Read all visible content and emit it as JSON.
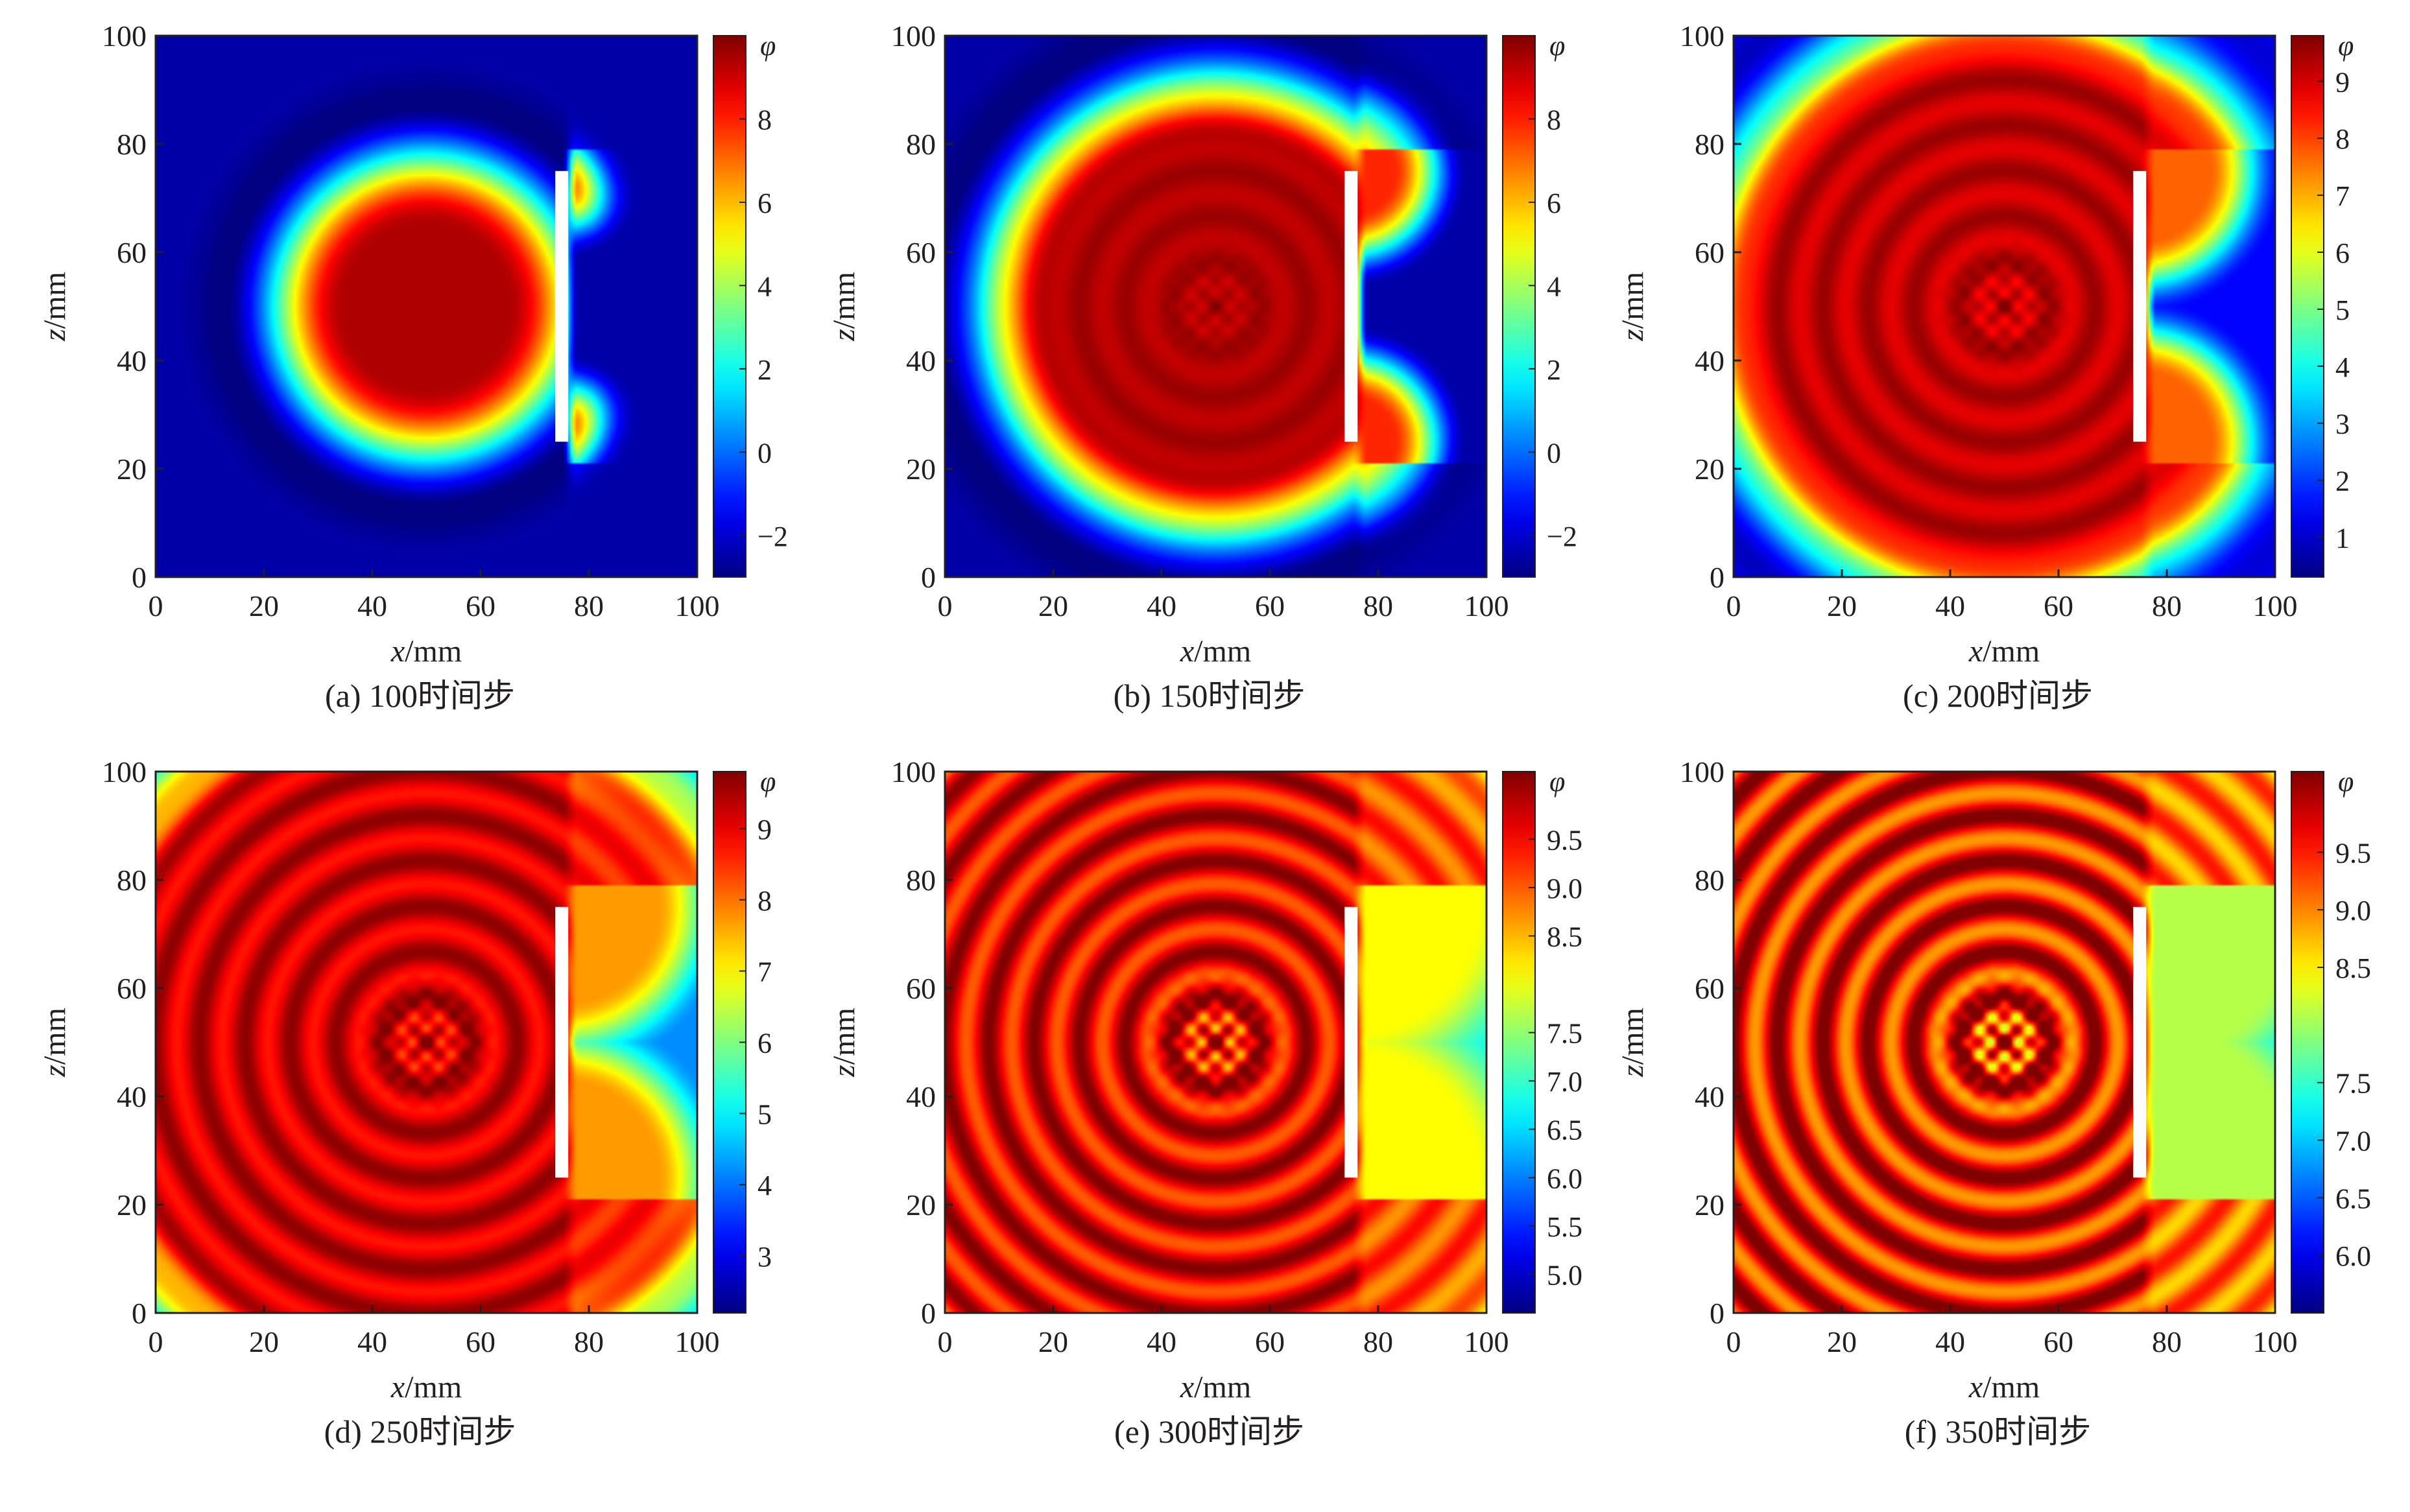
{
  "figure": {
    "panels": [
      {
        "caption": "(a) 100时间步",
        "colorbar": {
          "symbol": "φ",
          "ticks": [
            "8",
            "6",
            "4",
            "2",
            "0",
            "−2"
          ],
          "min": -3,
          "max": 10
        },
        "field": {
          "front_radius": 37,
          "inner_radius": 19,
          "shadow_bg": -2.5,
          "noise": 0,
          "hot_core": 0
        }
      },
      {
        "caption": "(b) 150时间步",
        "colorbar": {
          "symbol": "φ",
          "ticks": [
            "8",
            "6",
            "4",
            "2",
            "0",
            "−2"
          ],
          "min": -3,
          "max": 10
        },
        "field": {
          "front_radius": 52,
          "inner_radius": 32,
          "shadow_bg": -2.5,
          "noise": 0.25,
          "hot_core": 0.4
        }
      },
      {
        "caption": "(c) 200时间步",
        "colorbar": {
          "symbol": "φ",
          "ticks": [
            "9",
            "8",
            "7",
            "6",
            "5",
            "4",
            "3",
            "2",
            "1"
          ],
          "min": 0.3,
          "max": 9.8
        },
        "field": {
          "front_radius": 66,
          "inner_radius": 42,
          "shadow_bg": 1.5,
          "noise": 0.35,
          "hot_core": 0.6
        }
      },
      {
        "caption": "(d) 250时间步",
        "colorbar": {
          "symbol": "φ",
          "ticks": [
            "9",
            "8",
            "7",
            "6",
            "5",
            "4",
            "3"
          ],
          "min": 2.2,
          "max": 9.8
        },
        "field": {
          "front_radius": 80,
          "inner_radius": 55,
          "shadow_bg": 4.2,
          "noise": 0.5,
          "hot_core": 0.9
        }
      },
      {
        "caption": "(e) 300时间步",
        "colorbar": {
          "symbol": "φ",
          "ticks": [
            "9.5",
            "9.0",
            "8.5",
            "7.5",
            "7.0",
            "6.5",
            "6.0",
            "5.5",
            "5.0"
          ],
          "min": 4.6,
          "max": 10.2
        },
        "field": {
          "front_radius": 95,
          "inner_radius": 65,
          "shadow_bg": 6.8,
          "noise": 0.6,
          "hot_core": 1.2
        }
      },
      {
        "caption": "(f) 350时间步",
        "colorbar": {
          "symbol": "φ",
          "ticks": [
            "9.5",
            "9.0",
            "8.5",
            "7.5",
            "7.0",
            "6.5",
            "6.0"
          ],
          "min": 5.5,
          "max": 10.2
        },
        "field": {
          "front_radius": 110,
          "inner_radius": 75,
          "shadow_bg": 6.9,
          "noise": 0.7,
          "hot_core": 1.4
        }
      }
    ]
  },
  "chart_data": {
    "type": "heatmap",
    "description": "",
    "xlabel": "x/mm",
    "ylabel": "z/mm",
    "xlim": [
      0,
      100
    ],
    "ylim": [
      0,
      100
    ],
    "x_ticks": [
      "0",
      "20",
      "40",
      "60",
      "80",
      "100"
    ],
    "y_ticks": [
      "0",
      "20",
      "40",
      "60",
      "80",
      "100"
    ],
    "source": {
      "x": 50,
      "z": 50
    },
    "barrier": {
      "x": 75,
      "z_min": 25,
      "z_max": 75
    },
    "time_steps": [
      100,
      150,
      200,
      250,
      300,
      350
    ],
    "colormap": "jet",
    "colorbar_symbol": "φ"
  }
}
